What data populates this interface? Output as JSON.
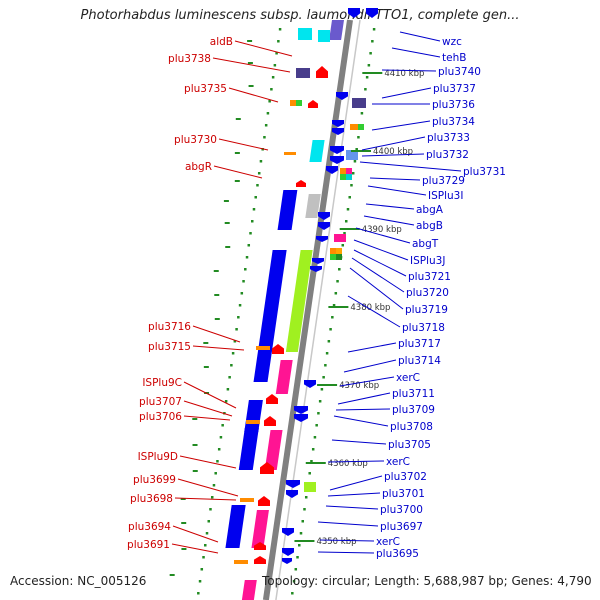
{
  "title": "Photorhabdus luminescens subsp. laumondii TTO1, complete gen...",
  "footer": {
    "accession": "Accession: NC_005126",
    "summary": "Topology: circular; Length: 5,688,987 bp; Genes: 4,790"
  },
  "colors": {
    "left_label": "#cc0000",
    "right_label": "#0000cc",
    "backbone": "#808080",
    "forward_gene": "#ee0000",
    "reverse_gene": "#0000ee",
    "marker": "#228b22"
  },
  "kbp_ticks": [
    "4410 kbp",
    "4400 kbp",
    "4390 kbp",
    "4380 kbp",
    "4370 kbp",
    "4360 kbp",
    "4350 kbp"
  ],
  "left_labels": [
    "aldB",
    "plu3738",
    "plu3735",
    "plu3730",
    "abgR",
    "plu3716",
    "plu3715",
    "ISPlu9C",
    "plu3707",
    "plu3706",
    "ISPlu9D",
    "plu3699",
    "plu3698",
    "plu3694",
    "plu3691"
  ],
  "right_labels": [
    "wzc",
    "tehB",
    "plu3740",
    "plu3737",
    "plu3736",
    "plu3734",
    "plu3733",
    "plu3732",
    "plu3731",
    "plu3729",
    "ISPlu3I",
    "abgA",
    "abgB",
    "abgT",
    "ISPlu3J",
    "plu3721",
    "plu3720",
    "plu3719",
    "plu3718",
    "plu3717",
    "plu3714",
    "xerC",
    "plu3711",
    "plu3709",
    "plu3708",
    "plu3705",
    "xerC",
    "plu3702",
    "plu3701",
    "plu3700",
    "plu3697",
    "xerC",
    "plu3695"
  ]
}
